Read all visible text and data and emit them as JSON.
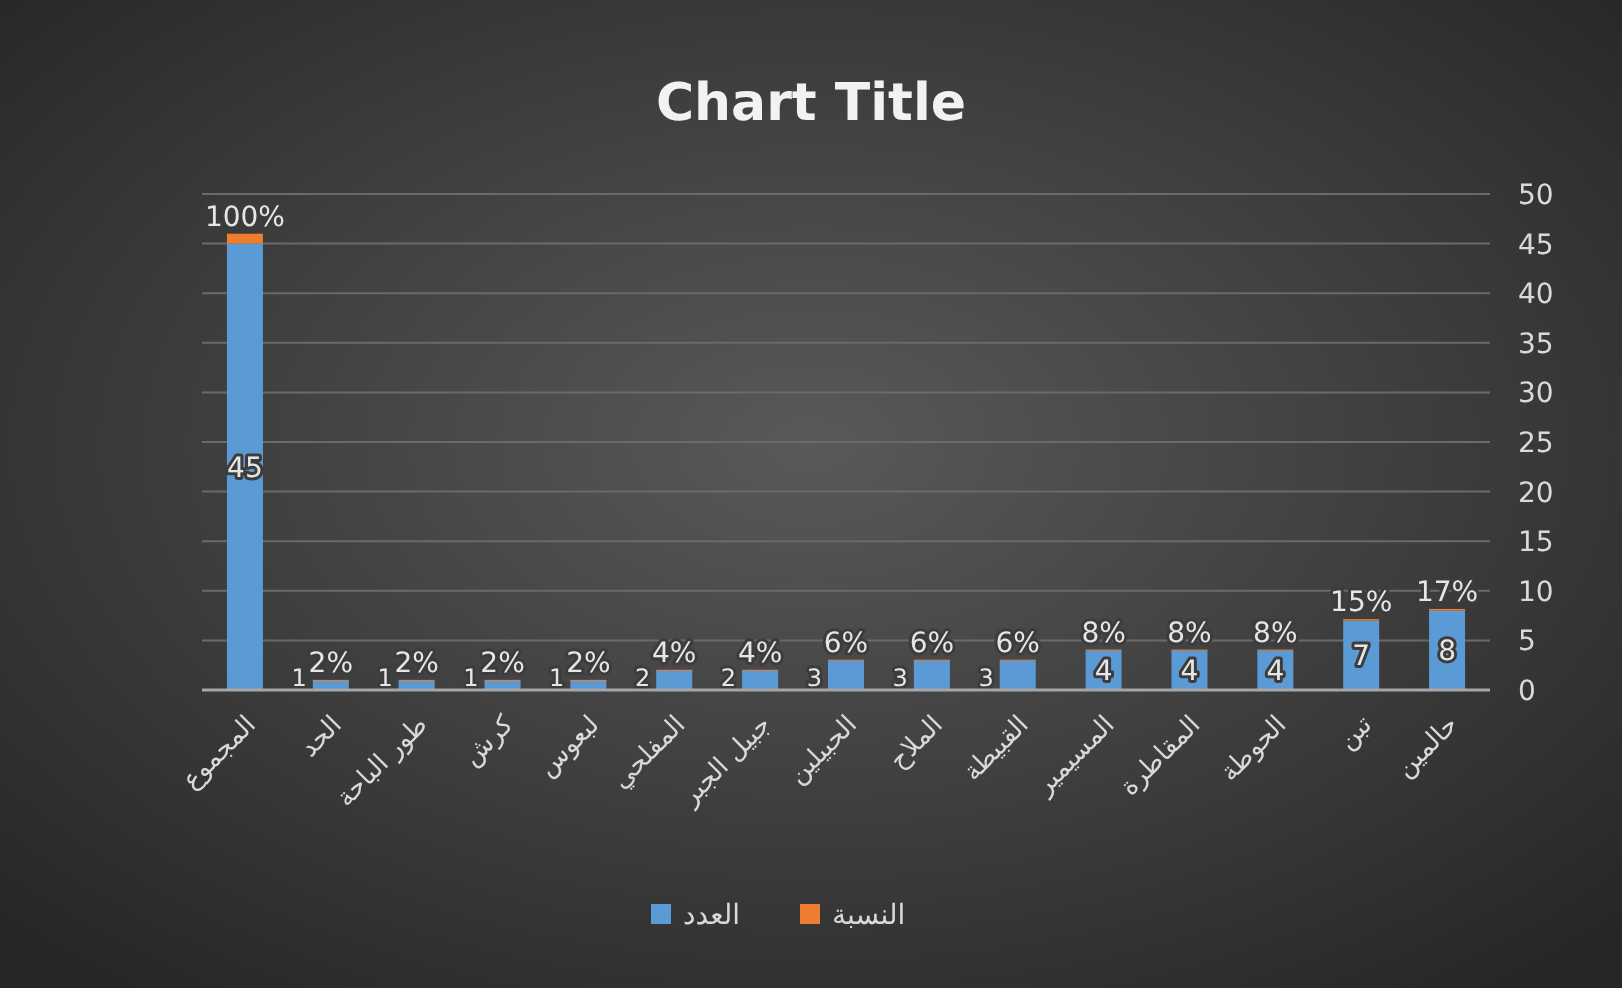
{
  "chart_data": {
    "type": "bar",
    "title": "Chart Title",
    "categories": [
      "المجموع",
      "الحد",
      "طور الباحة",
      "كرش",
      "لبعوس",
      "المفلحي",
      "جبيل الجبر",
      "الحبيلين",
      "الملاح",
      "القبيطة",
      "المسيمير",
      "المقاطرة",
      "الحوطة",
      "تبن",
      "حالمين"
    ],
    "series": [
      {
        "name": "العدد",
        "color": "#5b9bd5",
        "values": [
          45,
          1,
          1,
          1,
          1,
          2,
          2,
          3,
          3,
          3,
          4,
          4,
          4,
          7,
          8
        ],
        "value_labels": [
          "45",
          "1",
          "1",
          "1",
          "1",
          "2",
          "2",
          "3",
          "3",
          "3",
          "4",
          "4",
          "4",
          "7",
          "8"
        ]
      },
      {
        "name": "النسبة",
        "color": "#ed7d31",
        "values": [
          1,
          0.02,
          0.02,
          0.02,
          0.02,
          0.04,
          0.04,
          0.06,
          0.06,
          0.06,
          0.08,
          0.08,
          0.08,
          0.15,
          0.17
        ],
        "value_labels": [
          "100%",
          "2%",
          "2%",
          "2%",
          "2%",
          "4%",
          "4%",
          "6%",
          "6%",
          "6%",
          "8%",
          "8%",
          "8%",
          "15%",
          "17%"
        ]
      }
    ],
    "stacked": true,
    "ylim": [
      0,
      50
    ],
    "yticks": [
      0,
      5,
      10,
      15,
      20,
      25,
      30,
      35,
      40,
      45,
      50
    ],
    "grid": "y",
    "legend": "bottom"
  }
}
